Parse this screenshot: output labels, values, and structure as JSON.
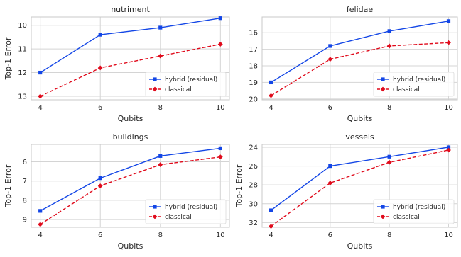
{
  "chart_data": [
    {
      "type": "line",
      "title": "nutriment",
      "xlabel": "Qubits",
      "ylabel": "Top-1 Error",
      "x": [
        4,
        6,
        8,
        10
      ],
      "xticks": [
        "4",
        "6",
        "8",
        "10"
      ],
      "yticks": [
        "10",
        "11",
        "12",
        "13"
      ],
      "ylim": [
        13.15,
        9.65
      ],
      "y_inverted": true,
      "grid": true,
      "legend_position": "lower-right",
      "series": [
        {
          "name": "hybrid (residual)",
          "values": [
            12.0,
            10.4,
            10.1,
            9.7
          ],
          "color": "#1346e6",
          "linestyle": "solid",
          "marker": "square"
        },
        {
          "name": "classical",
          "values": [
            13.0,
            11.8,
            11.3,
            10.8
          ],
          "color": "#e00b1c",
          "linestyle": "dashed",
          "marker": "diamond"
        }
      ]
    },
    {
      "type": "line",
      "title": "felidae",
      "xlabel": "Qubits",
      "ylabel": "",
      "x": [
        4,
        6,
        8,
        10
      ],
      "xticks": [
        "4",
        "6",
        "8",
        "10"
      ],
      "yticks": [
        "16",
        "17",
        "18",
        "19",
        "20"
      ],
      "ylim": [
        20.05,
        15.05
      ],
      "y_inverted": true,
      "grid": true,
      "legend_position": "lower-right",
      "series": [
        {
          "name": "hybrid (residual)",
          "values": [
            19.0,
            16.8,
            15.9,
            15.3
          ],
          "color": "#1346e6",
          "linestyle": "solid",
          "marker": "square"
        },
        {
          "name": "classical",
          "values": [
            19.8,
            17.6,
            16.8,
            16.6
          ],
          "color": "#e00b1c",
          "linestyle": "dashed",
          "marker": "diamond"
        }
      ]
    },
    {
      "type": "line",
      "title": "buildings",
      "xlabel": "Qubits",
      "ylabel": "Top-1 Error",
      "x": [
        4,
        6,
        8,
        10
      ],
      "xticks": [
        "4",
        "6",
        "8",
        "10"
      ],
      "yticks": [
        "6",
        "7",
        "8",
        "9"
      ],
      "ylim": [
        9.4,
        5.1
      ],
      "y_inverted": true,
      "grid": true,
      "legend_position": "lower-right",
      "series": [
        {
          "name": "hybrid (residual)",
          "values": [
            8.55,
            6.85,
            5.7,
            5.3
          ],
          "color": "#1346e6",
          "linestyle": "solid",
          "marker": "square"
        },
        {
          "name": "classical",
          "values": [
            9.25,
            7.25,
            6.15,
            5.75
          ],
          "color": "#e00b1c",
          "linestyle": "dashed",
          "marker": "diamond"
        }
      ]
    },
    {
      "type": "line",
      "title": "vessels",
      "xlabel": "Qubits",
      "ylabel": "Top-1 Error",
      "x": [
        4,
        6,
        8,
        10
      ],
      "xticks": [
        "4",
        "6",
        "8",
        "10"
      ],
      "yticks": [
        "24",
        "26",
        "28",
        "30",
        "32"
      ],
      "ylim": [
        32.5,
        23.7
      ],
      "y_inverted": true,
      "grid": true,
      "legend_position": "lower-right",
      "series": [
        {
          "name": "hybrid (residual)",
          "values": [
            30.7,
            26.0,
            25.0,
            24.0
          ],
          "color": "#1346e6",
          "linestyle": "solid",
          "marker": "square"
        },
        {
          "name": "classical",
          "values": [
            32.4,
            27.8,
            25.6,
            24.3
          ],
          "color": "#e00b1c",
          "linestyle": "dashed",
          "marker": "diamond"
        }
      ]
    }
  ]
}
